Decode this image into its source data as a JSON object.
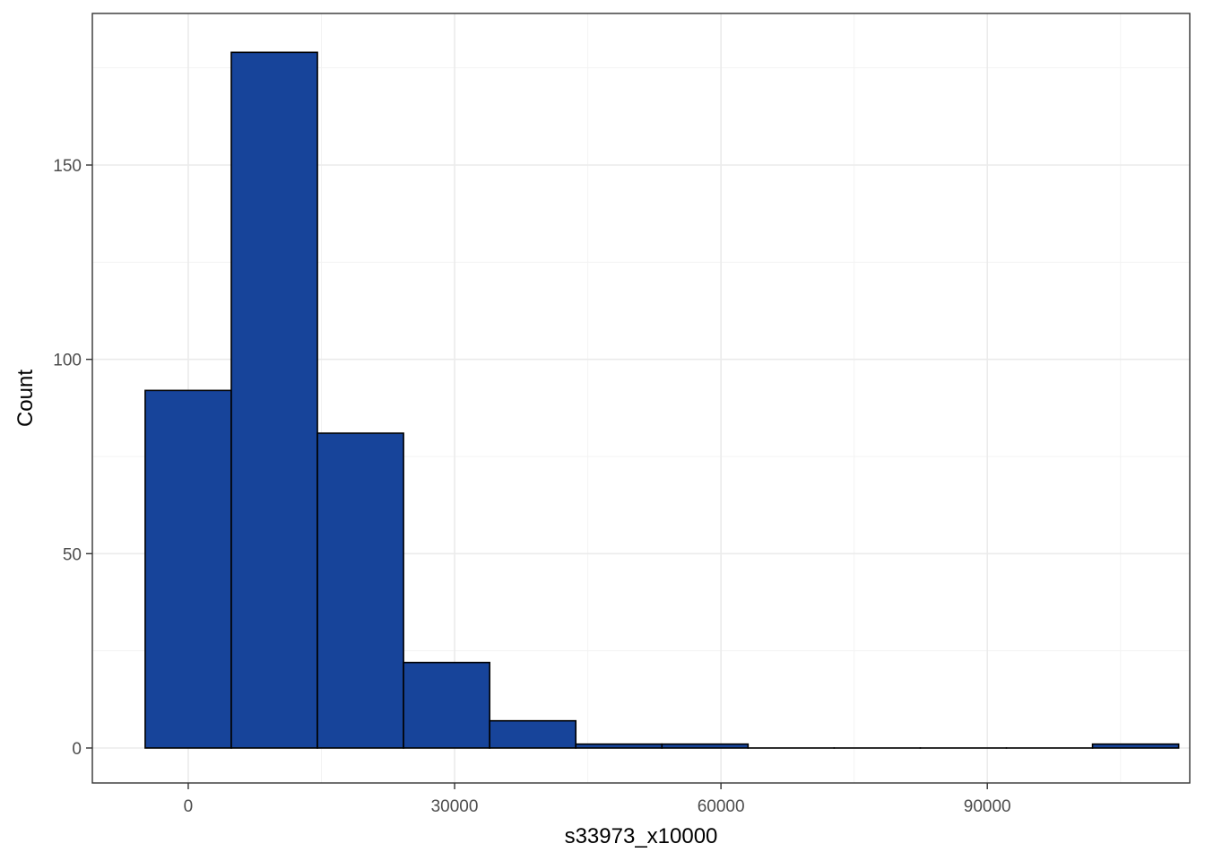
{
  "chart_data": {
    "type": "bar",
    "subtype": "histogram",
    "title": "",
    "xlabel": "s33973_x10000",
    "ylabel": "Count",
    "x_ticks": [
      0,
      30000,
      60000,
      90000
    ],
    "x_tick_labels": [
      "0",
      "30000",
      "60000",
      "90000"
    ],
    "y_ticks": [
      0,
      50,
      100,
      150
    ],
    "y_tick_labels": [
      "0",
      "50",
      "100",
      "150"
    ],
    "xlim": [
      -10800,
      112800
    ],
    "ylim": [
      -9,
      189
    ],
    "bin_width": 9700,
    "bins": [
      {
        "x0": -4850,
        "x1": 4850,
        "count": 92
      },
      {
        "x0": 4850,
        "x1": 14550,
        "count": 179
      },
      {
        "x0": 14550,
        "x1": 24250,
        "count": 81
      },
      {
        "x0": 24250,
        "x1": 33950,
        "count": 22
      },
      {
        "x0": 33950,
        "x1": 43650,
        "count": 7
      },
      {
        "x0": 43650,
        "x1": 53350,
        "count": 1
      },
      {
        "x0": 53350,
        "x1": 63050,
        "count": 1
      },
      {
        "x0": 63050,
        "x1": 72750,
        "count": 0
      },
      {
        "x0": 72750,
        "x1": 82450,
        "count": 0
      },
      {
        "x0": 82450,
        "x1": 92150,
        "count": 0
      },
      {
        "x0": 92150,
        "x1": 101850,
        "count": 0
      },
      {
        "x0": 101850,
        "x1": 111550,
        "count": 1
      }
    ],
    "bar_fill": "#17449a",
    "bar_outline": "#000000",
    "grid": true,
    "theme": "bw",
    "legend": "none"
  }
}
